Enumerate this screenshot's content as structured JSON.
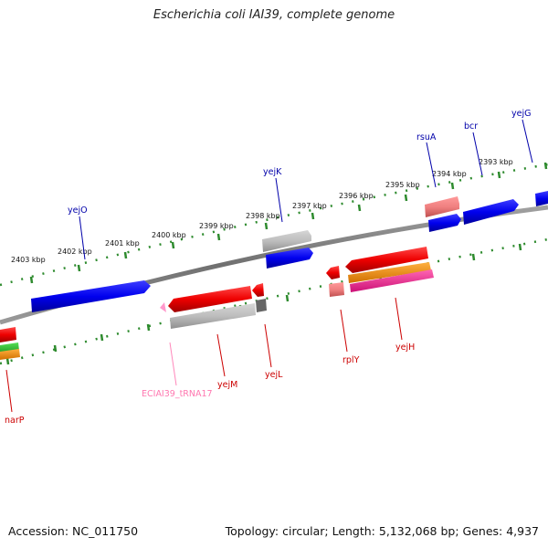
{
  "title": "Escherichia coli IAI39, complete genome",
  "footer": {
    "accession": "Accession: NC_011750",
    "summary": "Topology: circular; Length: 5,132,068 bp; Genes: 4,937"
  },
  "colors": {
    "backbone": "#808080",
    "tick": "#2e8b2e",
    "forward_gene": "#0000ee",
    "reverse_gene": "#ee0000",
    "rRNA": "#f08080",
    "tRNA": "#ff99cc",
    "pseudo": "#aaaaaa",
    "orange": "#ff9900",
    "magenta": "#ff3399",
    "green": "#33cc33"
  },
  "kbp_labels": [
    "2403 kbp",
    "2402 kbp",
    "2401 kbp",
    "2400 kbp",
    "2399 kbp",
    "2398 kbp",
    "2397 kbp",
    "2396 kbp",
    "2395 kbp",
    "2394 kbp",
    "2393 kbp"
  ],
  "genes_top": [
    "yejO",
    "yejK",
    "rsuA",
    "bcr",
    "yejG"
  ],
  "genes_bottom": [
    "narP",
    "ECIAI39_tRNA17",
    "yejM",
    "yejL",
    "rplY",
    "yejH"
  ]
}
